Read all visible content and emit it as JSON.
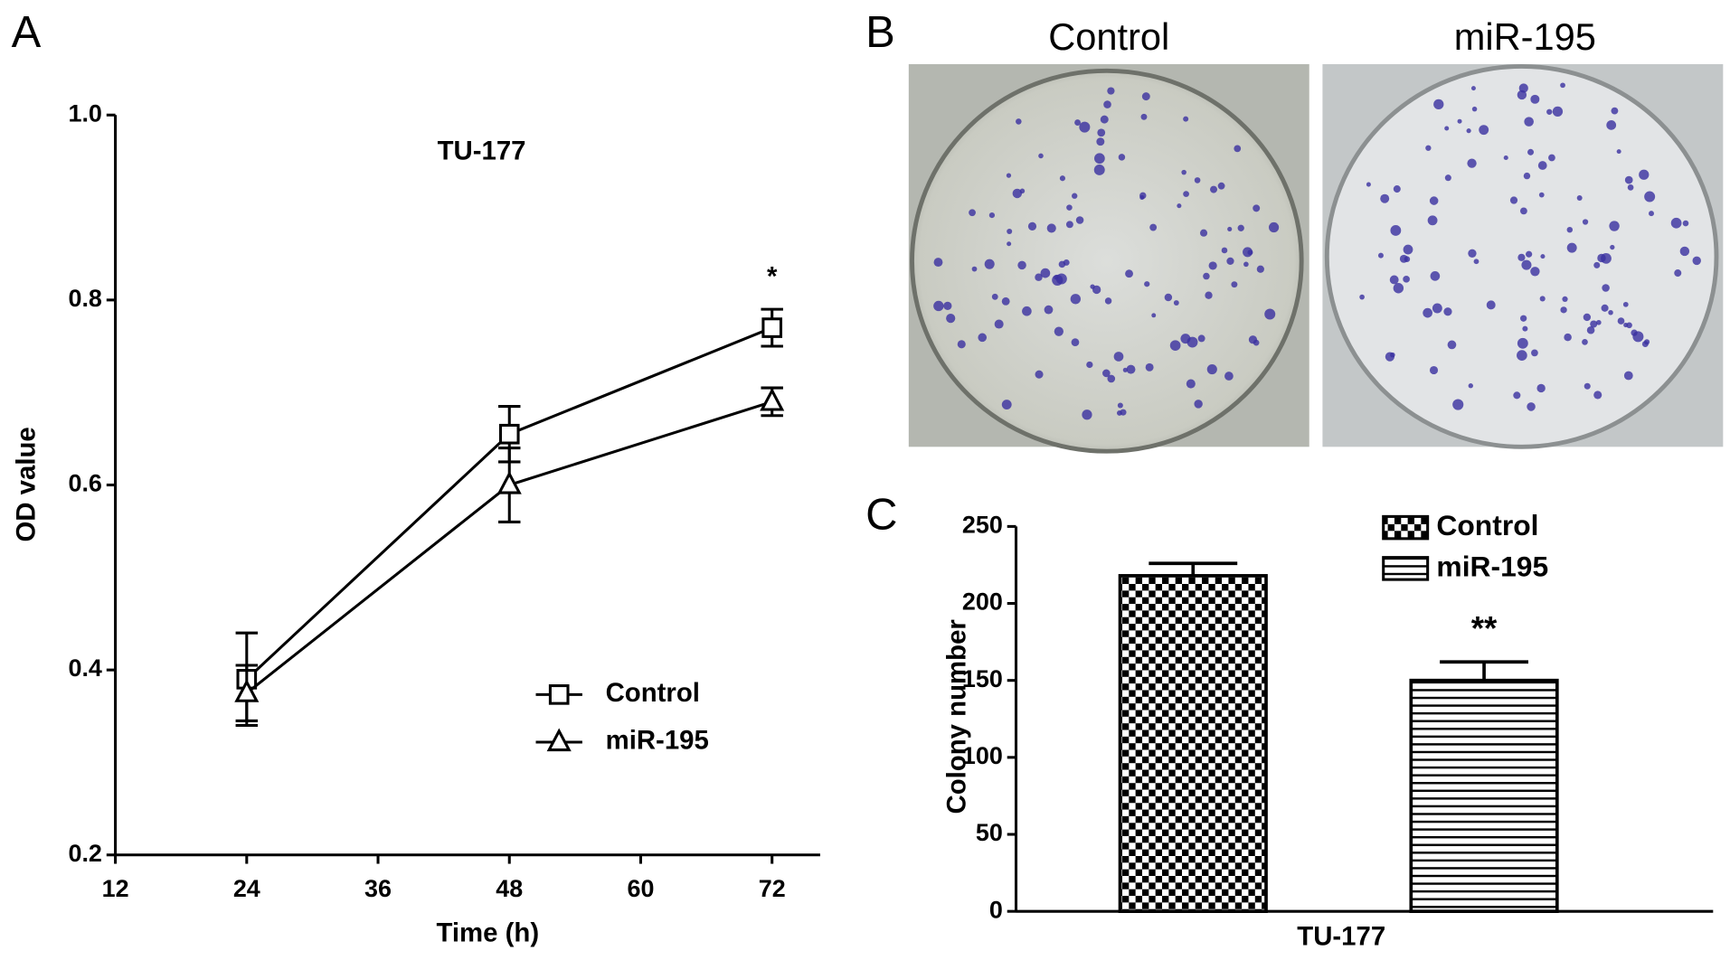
{
  "chart_data": [
    {
      "type": "line",
      "panel_label": "A",
      "title": "TU-177",
      "x_label": "Time (h)",
      "y_label": "OD value",
      "x": [
        24,
        48,
        72
      ],
      "series": [
        {
          "name": "Control",
          "color": "#000000",
          "marker": "square",
          "values": [
            0.39,
            0.655,
            0.77
          ],
          "errors": [
            0.05,
            0.03,
            0.02
          ]
        },
        {
          "name": "miR-195",
          "color": "#000000",
          "marker": "triangle",
          "values": [
            0.375,
            0.6,
            0.69
          ],
          "errors": [
            0.03,
            0.04,
            0.015
          ]
        }
      ],
      "xlim": [
        12,
        76.4
      ],
      "xticks": [
        12,
        24,
        36,
        48,
        60,
        72
      ],
      "ylim": [
        0.2,
        1.0
      ],
      "yticks": [
        0.2,
        0.4,
        0.6,
        0.8,
        {
          "value": 1.0,
          "label": "1.0"
        }
      ],
      "annotations": [
        {
          "x": 72,
          "text": "*"
        }
      ],
      "legend": "lower right"
    },
    {
      "type": "bar",
      "panel_label": "C",
      "x_label": "TU-177",
      "y_label": "Colony number",
      "series": [
        {
          "name": "Control",
          "color": "#000000",
          "pattern": "checker",
          "value": 218,
          "error": 8
        },
        {
          "name": "miR-195",
          "color": "#000000",
          "pattern": "hlines",
          "value": 150,
          "error": 12
        }
      ],
      "ylim": [
        0,
        250
      ],
      "yticks": [
        0,
        50,
        100,
        150,
        200,
        250
      ],
      "annotations": [
        {
          "series": 1,
          "text": "**"
        }
      ],
      "legend": "upper right"
    }
  ],
  "images": {
    "panel_label": "B",
    "captions": [
      "Control",
      "miR-195"
    ]
  }
}
